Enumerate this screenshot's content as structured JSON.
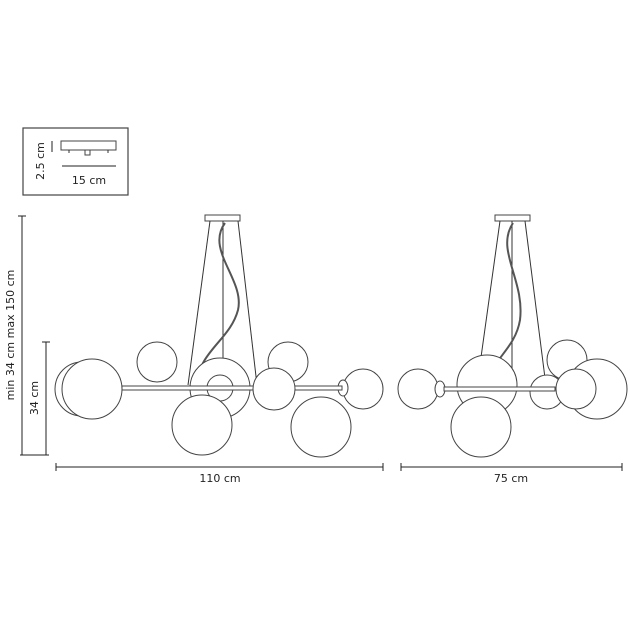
{
  "canopy_box": {
    "height_label": "2.5 cm",
    "width_label": "15 cm"
  },
  "front_view": {
    "width_label": "110 cm"
  },
  "side_view": {
    "width_label": "75 cm"
  },
  "height_dimensions": {
    "total_label": "min 34 cm max 150 cm",
    "body_label": "34 cm"
  },
  "colors": {
    "line": "#333333",
    "background": "#ffffff"
  }
}
